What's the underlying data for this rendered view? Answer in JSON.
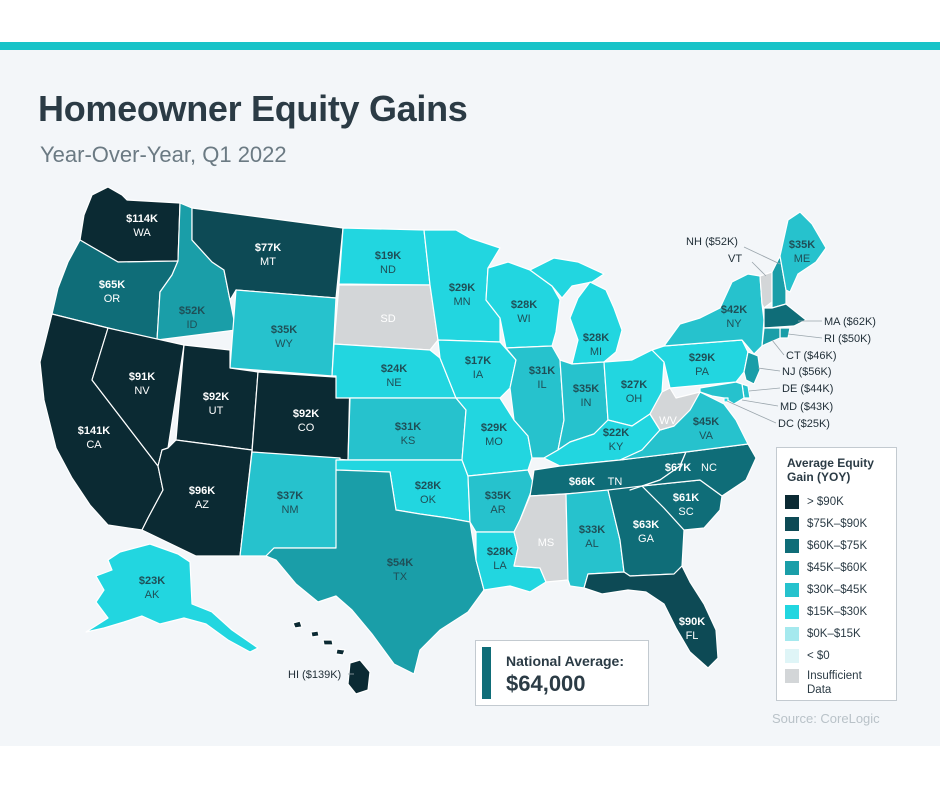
{
  "title": "Homeowner Equity Gains",
  "subtitle": "Year-Over-Year, Q1 2022",
  "source": "Source: CoreLogic",
  "national_average": {
    "label": "National Average:",
    "value": "$64,000"
  },
  "legend": {
    "title": "Average Equity Gain (YOY)",
    "items": [
      {
        "label": "> $90K",
        "color": "#0b2a33"
      },
      {
        "label": "$75K–$90K",
        "color": "#0d4a55"
      },
      {
        "label": "$60K–$75K",
        "color": "#0f6d78"
      },
      {
        "label": "$45K–$60K",
        "color": "#1a9ea8"
      },
      {
        "label": "$30K–$45K",
        "color": "#26c2cd"
      },
      {
        "label": "$15K–$30K",
        "color": "#22d6e0"
      },
      {
        "label": "$0K–$15K",
        "color": "#a5e9ee"
      },
      {
        "label": "< $0",
        "color": "#dff5f7"
      },
      {
        "label": "Insufficient Data",
        "color": "#d3d6d8"
      }
    ]
  },
  "states": {
    "WA": {
      "code": "WA",
      "value": "$114K",
      "color": "#0b2a33"
    },
    "OR": {
      "code": "OR",
      "value": "$65K",
      "color": "#0f6d78"
    },
    "CA": {
      "code": "CA",
      "value": "$141K",
      "color": "#0b2a33"
    },
    "ID": {
      "code": "ID",
      "value": "$52K",
      "color": "#1a9ea8"
    },
    "NV": {
      "code": "NV",
      "value": "$91K",
      "color": "#0b2a33"
    },
    "MT": {
      "code": "MT",
      "value": "$77K",
      "color": "#0d4a55"
    },
    "WY": {
      "code": "WY",
      "value": "$35K",
      "color": "#26c2cd"
    },
    "UT": {
      "code": "UT",
      "value": "$92K",
      "color": "#0b2a33"
    },
    "CO": {
      "code": "CO",
      "value": "$92K",
      "color": "#0b2a33"
    },
    "AZ": {
      "code": "AZ",
      "value": "$96K",
      "color": "#0b2a33"
    },
    "NM": {
      "code": "NM",
      "value": "$37K",
      "color": "#26c2cd"
    },
    "ND": {
      "code": "ND",
      "value": "$19K",
      "color": "#22d6e0"
    },
    "SD": {
      "code": "SD",
      "value": "",
      "color": "#d3d6d8"
    },
    "NE": {
      "code": "NE",
      "value": "$24K",
      "color": "#22d6e0"
    },
    "KS": {
      "code": "KS",
      "value": "$31K",
      "color": "#26c2cd"
    },
    "OK": {
      "code": "OK",
      "value": "$28K",
      "color": "#22d6e0"
    },
    "TX": {
      "code": "TX",
      "value": "$54K",
      "color": "#1a9ea8"
    },
    "MN": {
      "code": "MN",
      "value": "$29K",
      "color": "#22d6e0"
    },
    "IA": {
      "code": "IA",
      "value": "$17K",
      "color": "#22d6e0"
    },
    "MO": {
      "code": "MO",
      "value": "$29K",
      "color": "#22d6e0"
    },
    "AR": {
      "code": "AR",
      "value": "$35K",
      "color": "#26c2cd"
    },
    "LA": {
      "code": "LA",
      "value": "$28K",
      "color": "#22d6e0"
    },
    "WI": {
      "code": "WI",
      "value": "$28K",
      "color": "#22d6e0"
    },
    "IL": {
      "code": "IL",
      "value": "$31K",
      "color": "#26c2cd"
    },
    "MI": {
      "code": "MI",
      "value": "$28K",
      "color": "#22d6e0"
    },
    "IN": {
      "code": "IN",
      "value": "$35K",
      "color": "#26c2cd"
    },
    "OH": {
      "code": "OH",
      "value": "$27K",
      "color": "#22d6e0"
    },
    "KY": {
      "code": "KY",
      "value": "$22K",
      "color": "#22d6e0"
    },
    "TN": {
      "code": "TN",
      "value": "$66K",
      "color": "#0f6d78"
    },
    "MS": {
      "code": "MS",
      "value": "",
      "color": "#d3d6d8"
    },
    "AL": {
      "code": "AL",
      "value": "$33K",
      "color": "#26c2cd"
    },
    "GA": {
      "code": "GA",
      "value": "$63K",
      "color": "#0f6d78"
    },
    "FL": {
      "code": "FL",
      "value": "$90K",
      "color": "#0d4a55"
    },
    "SC": {
      "code": "SC",
      "value": "$61K",
      "color": "#0f6d78"
    },
    "NC": {
      "code": "NC",
      "value": "$67K",
      "color": "#0f6d78"
    },
    "VA": {
      "code": "VA",
      "value": "$45K",
      "color": "#26c2cd"
    },
    "WV": {
      "code": "WV",
      "value": "",
      "color": "#d3d6d8"
    },
    "PA": {
      "code": "PA",
      "value": "$29K",
      "color": "#22d6e0"
    },
    "NY": {
      "code": "NY",
      "value": "$42K",
      "color": "#26c2cd"
    },
    "ME": {
      "code": "ME",
      "value": "$35K",
      "color": "#26c2cd"
    },
    "AK": {
      "code": "AK",
      "value": "$23K",
      "color": "#22d6e0"
    },
    "VT": {
      "code": "VT",
      "color": "#d3d6d8"
    },
    "NH": {
      "code": "NH",
      "value": "$52K",
      "color": "#1a9ea8"
    },
    "MA": {
      "code": "MA",
      "value": "$62K",
      "color": "#0f6d78"
    },
    "RI": {
      "code": "RI",
      "value": "$50K",
      "color": "#1a9ea8"
    },
    "CT": {
      "code": "CT",
      "value": "$46K",
      "color": "#1a9ea8"
    },
    "NJ": {
      "code": "NJ",
      "value": "$56K",
      "color": "#1a9ea8"
    },
    "DE": {
      "code": "DE",
      "value": "$44K",
      "color": "#26c2cd"
    },
    "MD": {
      "code": "MD",
      "value": "$43K",
      "color": "#26c2cd"
    },
    "DC": {
      "code": "DC",
      "value": "$25K",
      "color": "#22d6e0"
    },
    "HI": {
      "code": "HI",
      "value": "$139K",
      "color": "#0b2a33"
    }
  },
  "external_labels": {
    "NH": "NH ($52K)",
    "VT": "VT",
    "MA": "MA ($62K)",
    "RI": "RI ($50K)",
    "CT": "CT ($46K)",
    "NJ": "NJ ($56K)",
    "DE": "DE ($44K)",
    "MD": "MD ($43K)",
    "DC": "DC ($25K)",
    "HI": "HI ($139K)"
  }
}
